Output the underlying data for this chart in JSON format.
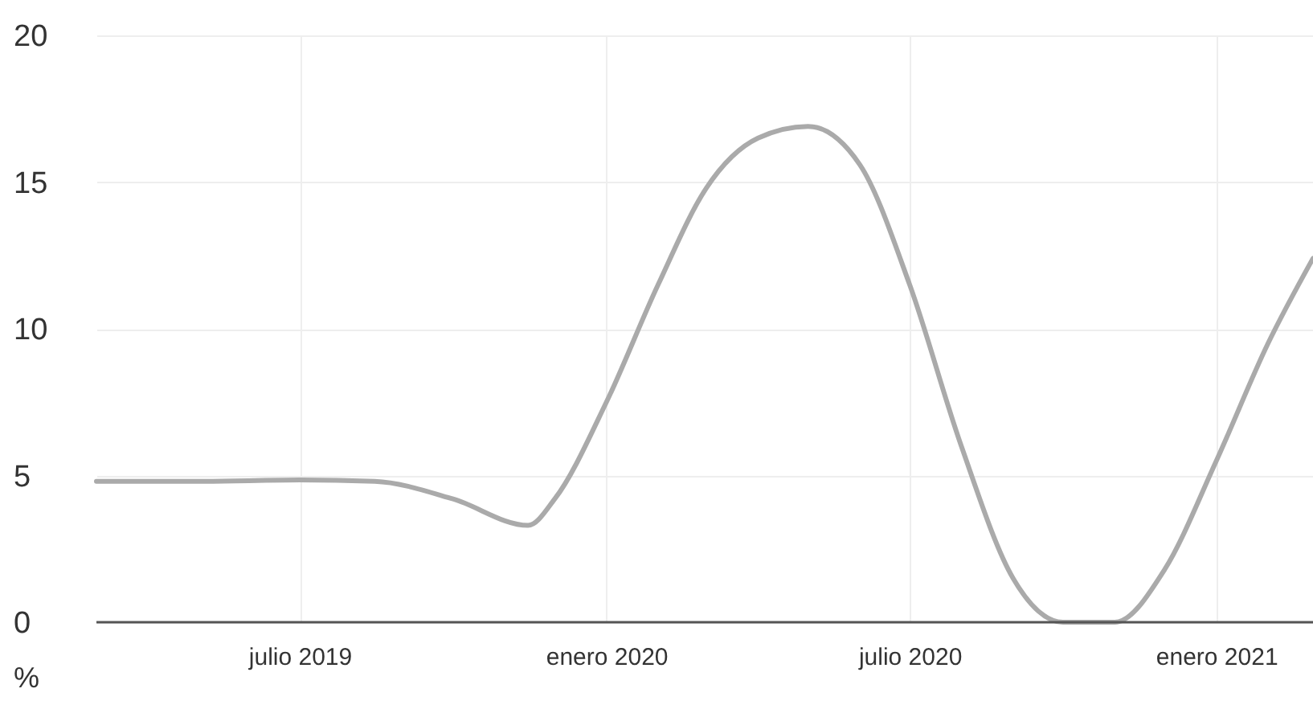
{
  "chart_data": {
    "type": "line",
    "ylabel": "%",
    "x": [
      "2019-03-01",
      "2019-05-01",
      "2019-07-01",
      "2019-08-15",
      "2019-10-01",
      "2019-11-15",
      "2019-12-01",
      "2020-01-01",
      "2020-02-01",
      "2020-03-01",
      "2020-04-01",
      "2020-05-01",
      "2020-06-01",
      "2020-07-01",
      "2020-08-01",
      "2020-09-01",
      "2020-10-01",
      "2020-11-01",
      "2020-12-01",
      "2021-01-01",
      "2021-02-01",
      "2021-02-28"
    ],
    "series": [
      {
        "color": "#aaaaaa",
        "values": [
          4.8,
          4.8,
          4.85,
          4.8,
          4.2,
          3.3,
          4.2,
          7.5,
          11.5,
          14.8,
          16.5,
          16.9,
          15.6,
          11.5,
          6,
          1.5,
          0,
          0,
          1.8,
          5.5,
          9.5,
          12.4
        ]
      }
    ],
    "xlim": [
      "2019-03-01",
      "2021-02-28"
    ],
    "xticks": [
      {
        "value": "2019-07-01",
        "label": "julio 2019"
      },
      {
        "value": "2020-01-01",
        "label": "enero 2020"
      },
      {
        "value": "2020-07-01",
        "label": "julio 2020"
      },
      {
        "value": "2021-01-01",
        "label": "enero 2021"
      }
    ],
    "ylim": [
      0,
      20
    ],
    "yticks": [
      0,
      5,
      10,
      15,
      20
    ],
    "grid": true,
    "marker": "none",
    "line_style": "solid"
  }
}
